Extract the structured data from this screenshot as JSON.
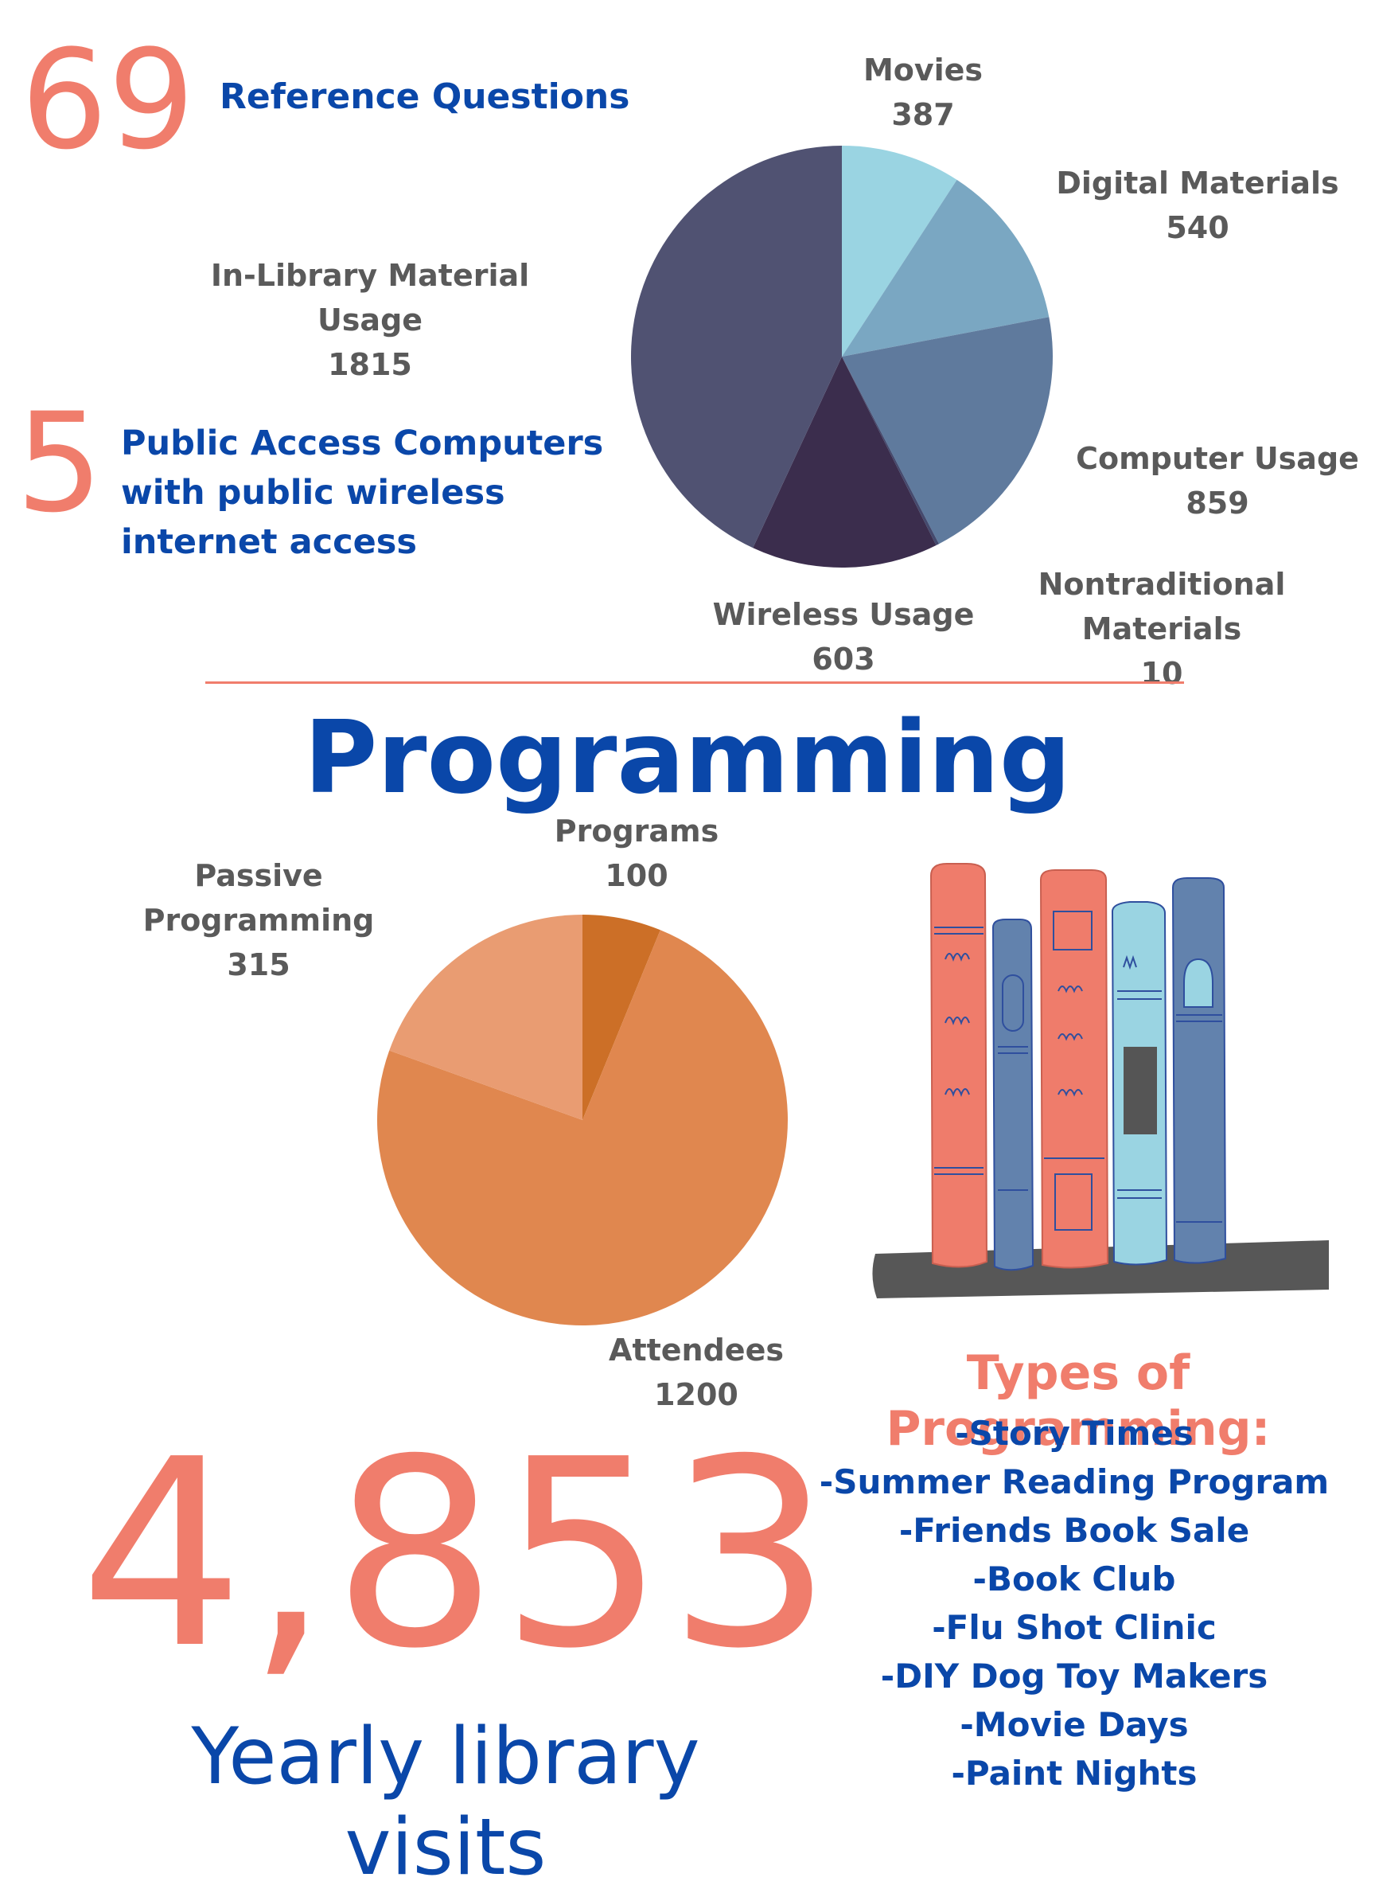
{
  "stats": {
    "reference": {
      "number": "69",
      "label": "Reference Questions"
    },
    "computers": {
      "number": "5",
      "label": "Public Access Computers with public wireless internet access"
    },
    "visits": {
      "number": "4,853",
      "label": "Yearly library visits"
    }
  },
  "section_title": "Programming",
  "types_heading": "Types of Programming:",
  "types": [
    "-Story Times",
    "-Summer Reading Program",
    "-Friends Book Sale",
    "-Book Club",
    "-Flu Shot Clinic",
    "-DIY Dog Toy Makers",
    "-Movie Days",
    "-Paint Nights"
  ],
  "colors": {
    "accent_salmon": "#f07d6c",
    "accent_blue": "#0a47a9",
    "label_gray": "#5a5a5a"
  },
  "illustration": {
    "name": "bookshelf-illustration"
  },
  "chart_data": [
    {
      "type": "pie",
      "title": "",
      "slices": [
        {
          "label": "Movies",
          "value": 387,
          "display": "387",
          "color": "#9ad4e2"
        },
        {
          "label": "Digital Materials",
          "value": 540,
          "display": "540",
          "color": "#7aa7c2"
        },
        {
          "label": "Computer Usage",
          "value": 859,
          "display": "859",
          "color": "#5f7a9d"
        },
        {
          "label": "Nontraditional Materials",
          "value": 10,
          "display": "10",
          "color": "#444a6e"
        },
        {
          "label": "Wireless Usage",
          "value": 603,
          "display": "603",
          "color": "#3b2d4d"
        },
        {
          "label": "In-Library Material Usage",
          "value": 1815,
          "display": "1815",
          "color": "#505272"
        }
      ]
    },
    {
      "type": "pie",
      "title": "",
      "slices": [
        {
          "label": "Programs",
          "value": 100,
          "display": "100",
          "color": "#cc6f27"
        },
        {
          "label": "Attendees",
          "value": 1200,
          "display": "1200",
          "color": "#e0874f"
        },
        {
          "label": "Passive Programming",
          "value": 315,
          "display": "315",
          "color": "#e99c72"
        }
      ]
    }
  ]
}
